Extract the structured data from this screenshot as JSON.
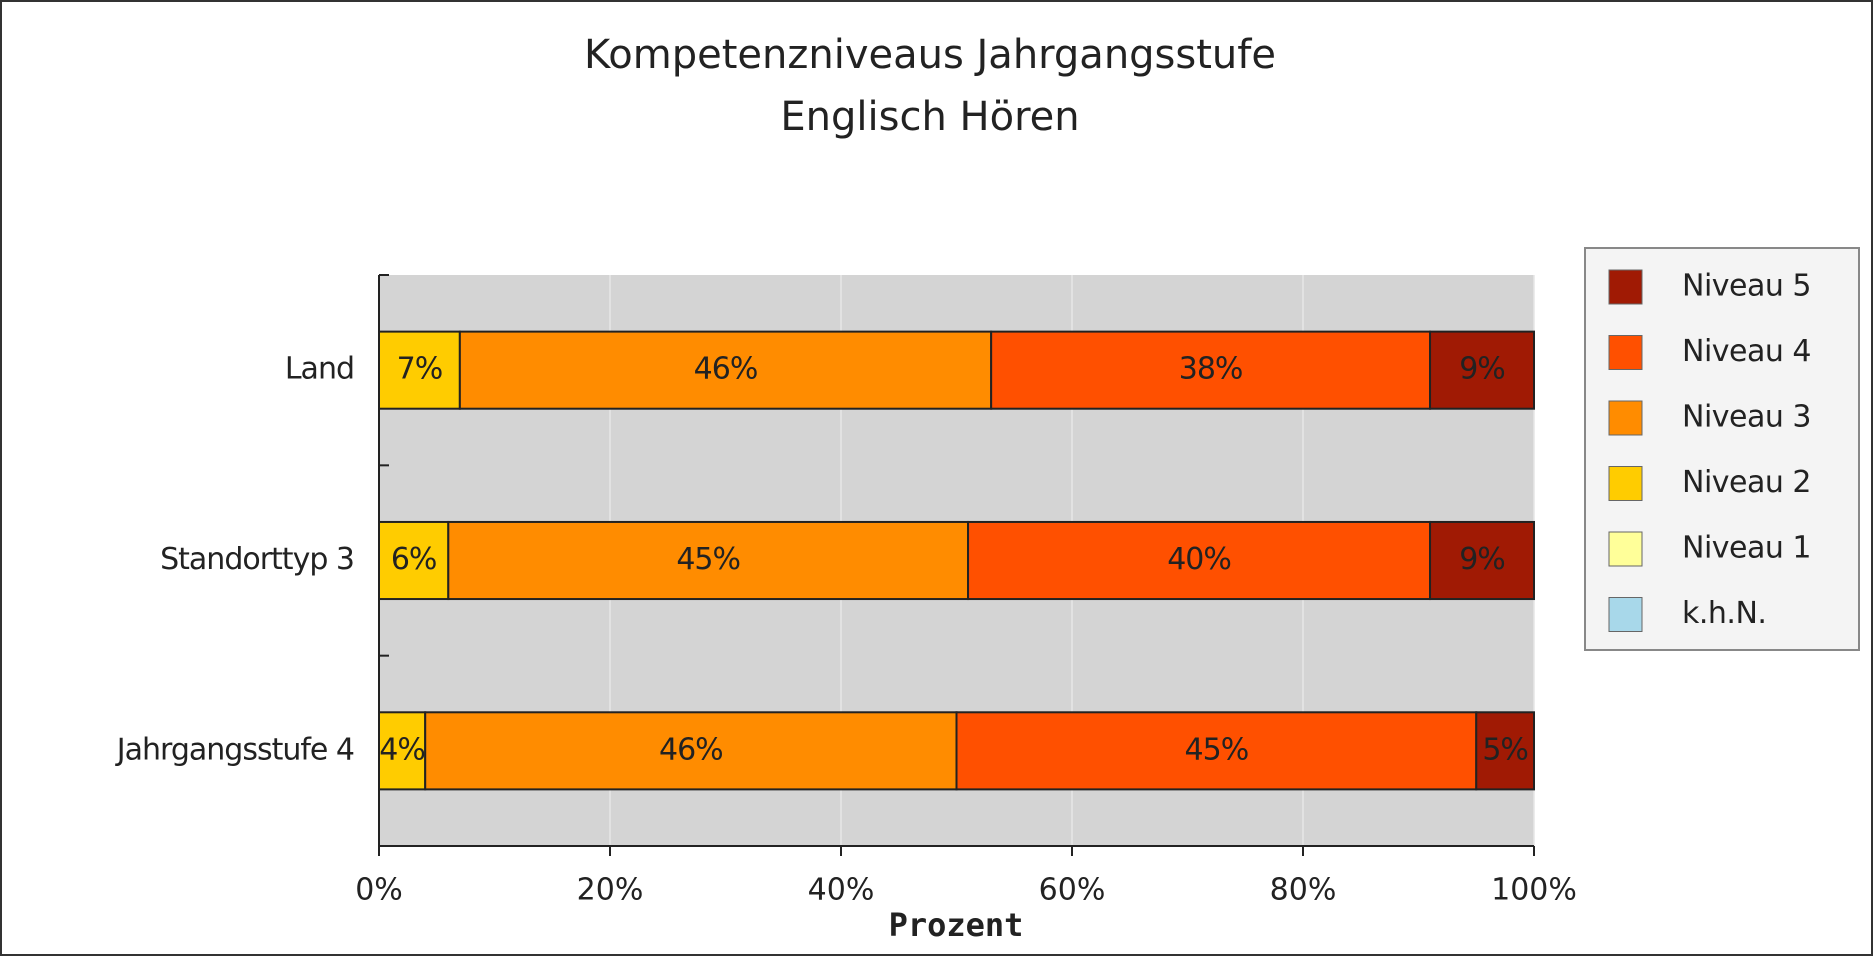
{
  "chart_data": {
    "type": "stacked-bar-horizontal",
    "title": "Kompetenzniveaus Jahrgangsstufe",
    "subtitle": "Englisch Hören",
    "x_label": "Prozent",
    "categories": [
      "Land",
      "Standorttyp 3",
      "Jahrgangsstufe 4"
    ],
    "series": [
      {
        "name": "k.h.N.",
        "color": "#a8d8ea",
        "values": [
          0,
          0,
          0
        ]
      },
      {
        "name": "Niveau 1",
        "color": "#ffff99",
        "values": [
          0,
          0,
          0
        ]
      },
      {
        "name": "Niveau 2",
        "color": "#ffcc00",
        "values": [
          7,
          6,
          4
        ],
        "value_labels": [
          "7%",
          "6%",
          "4%"
        ]
      },
      {
        "name": "Niveau 3",
        "color": "#ff8c00",
        "values": [
          46,
          45,
          46
        ],
        "value_labels": [
          "46%",
          "45%",
          "46%"
        ]
      },
      {
        "name": "Niveau 4",
        "color": "#ff5000",
        "values": [
          38,
          40,
          45
        ],
        "value_labels": [
          "38%",
          "40%",
          "45%"
        ]
      },
      {
        "name": "Niveau 5",
        "color": "#a01a04",
        "values": [
          9,
          9,
          5
        ],
        "value_labels": [
          "9%",
          "9%",
          "5%"
        ]
      }
    ],
    "xlim": [
      0,
      100
    ],
    "xticks": [
      {
        "value": 0,
        "label": "0%"
      },
      {
        "value": 20,
        "label": "20%"
      },
      {
        "value": 40,
        "label": "40%"
      },
      {
        "value": 60,
        "label": "60%"
      },
      {
        "value": 80,
        "label": "80%"
      },
      {
        "value": 100,
        "label": "100%"
      }
    ],
    "grid": true,
    "legend": "right"
  }
}
